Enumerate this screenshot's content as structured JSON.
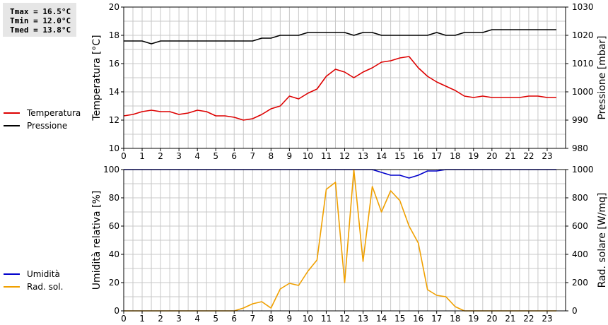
{
  "stats": {
    "tmax": "Tmax = 16.5°C",
    "tmin": "Tmin = 12.0°C",
    "tmed": "Tmed = 13.8°C"
  },
  "colors": {
    "temperature": "#dd0000",
    "pressure": "#000000",
    "humidity": "#0000cc",
    "radiation": "#f0a000",
    "grid": "#c8c8c8"
  },
  "chart_data": [
    {
      "type": "line",
      "xlabel": "",
      "x_ticks": [
        "0",
        "1",
        "2",
        "3",
        "4",
        "5",
        "6",
        "7",
        "8",
        "9",
        "10",
        "11",
        "12",
        "13",
        "14",
        "15",
        "16",
        "17",
        "18",
        "19",
        "20",
        "21",
        "22",
        "23"
      ],
      "xlim": [
        0,
        24
      ],
      "ylabel": "Temperatura [°C]",
      "ylim": [
        10,
        20
      ],
      "y_ticks": [
        "10",
        "12",
        "14",
        "16",
        "18",
        "20"
      ],
      "y2label": "Pressione [mbar]",
      "y2lim": [
        980,
        1030
      ],
      "y2_ticks": [
        "980",
        "990",
        "1000",
        "1010",
        "1020",
        "1030"
      ],
      "grid": true,
      "legend_position": "left",
      "series": [
        {
          "name": "Temperatura",
          "axis": "left",
          "x": [
            0,
            0.5,
            1,
            1.5,
            2,
            2.5,
            3,
            3.5,
            4,
            4.5,
            5,
            5.5,
            6,
            6.5,
            7,
            7.5,
            8,
            8.5,
            9,
            9.5,
            10,
            10.5,
            11,
            11.5,
            12,
            12.5,
            13,
            13.5,
            14,
            14.5,
            15,
            15.5,
            16,
            16.5,
            17,
            17.5,
            18,
            18.5,
            19,
            19.5,
            20,
            20.5,
            21,
            21.5,
            22,
            22.5,
            23,
            23.5
          ],
          "y": [
            12.3,
            12.4,
            12.6,
            12.7,
            12.6,
            12.6,
            12.4,
            12.5,
            12.7,
            12.6,
            12.3,
            12.3,
            12.2,
            12.0,
            12.1,
            12.4,
            12.8,
            13.0,
            13.7,
            13.5,
            13.9,
            14.2,
            15.1,
            15.6,
            15.4,
            15.0,
            15.4,
            15.7,
            16.1,
            16.2,
            16.4,
            16.5,
            15.7,
            15.1,
            14.7,
            14.4,
            14.1,
            13.7,
            13.6,
            13.7,
            13.6,
            13.6,
            13.6,
            13.6,
            13.7,
            13.7,
            13.6,
            13.6
          ]
        },
        {
          "name": "Pressione",
          "axis": "right",
          "x": [
            0,
            0.5,
            1,
            1.5,
            2,
            2.5,
            3,
            3.5,
            4,
            4.5,
            5,
            5.5,
            6,
            6.5,
            7,
            7.5,
            8,
            8.5,
            9,
            9.5,
            10,
            10.5,
            11,
            11.5,
            12,
            12.5,
            13,
            13.5,
            14,
            14.5,
            15,
            15.5,
            16,
            16.5,
            17,
            17.5,
            18,
            18.5,
            19,
            19.5,
            20,
            20.5,
            21,
            21.5,
            22,
            22.5,
            23,
            23.5
          ],
          "y": [
            1018,
            1018,
            1018,
            1017,
            1018,
            1018,
            1018,
            1018,
            1018,
            1018,
            1018,
            1018,
            1018,
            1018,
            1018,
            1019,
            1019,
            1020,
            1020,
            1020,
            1021,
            1021,
            1021,
            1021,
            1021,
            1020,
            1021,
            1021,
            1020,
            1020,
            1020,
            1020,
            1020,
            1020,
            1021,
            1020,
            1020,
            1021,
            1021,
            1021,
            1022,
            1022,
            1022,
            1022,
            1022,
            1022,
            1022,
            1022
          ]
        }
      ]
    },
    {
      "type": "line",
      "xlabel": "",
      "x_ticks": [
        "0",
        "1",
        "2",
        "3",
        "4",
        "5",
        "6",
        "7",
        "8",
        "9",
        "10",
        "11",
        "12",
        "13",
        "14",
        "15",
        "16",
        "17",
        "18",
        "19",
        "20",
        "21",
        "22",
        "23"
      ],
      "xlim": [
        0,
        24
      ],
      "ylabel": "Umidità relativa [%]",
      "ylim": [
        0,
        100
      ],
      "y_ticks": [
        "0",
        "20",
        "40",
        "60",
        "80",
        "100"
      ],
      "y2label": "Rad. solare [W/mq]",
      "y2lim": [
        0,
        1000
      ],
      "y2_ticks": [
        "0",
        "200",
        "400",
        "600",
        "800",
        "1000"
      ],
      "grid": true,
      "legend_position": "left",
      "series": [
        {
          "name": "Umidità",
          "axis": "left",
          "x": [
            0,
            0.5,
            1,
            1.5,
            2,
            2.5,
            3,
            3.5,
            4,
            4.5,
            5,
            5.5,
            6,
            6.5,
            7,
            7.5,
            8,
            8.5,
            9,
            9.5,
            10,
            10.5,
            11,
            11.5,
            12,
            12.5,
            13,
            13.5,
            14,
            14.5,
            15,
            15.5,
            16,
            16.5,
            17,
            17.5,
            18,
            18.5,
            19,
            19.5,
            20,
            20.5,
            21,
            21.5,
            22,
            22.5,
            23,
            23.5
          ],
          "y": [
            100,
            100,
            100,
            100,
            100,
            100,
            100,
            100,
            100,
            100,
            100,
            100,
            100,
            100,
            100,
            100,
            100,
            100,
            100,
            100,
            100,
            100,
            100,
            100,
            100,
            100,
            100,
            100,
            98,
            96,
            96,
            94,
            96,
            99,
            99,
            100,
            100,
            100,
            100,
            100,
            100,
            100,
            100,
            100,
            100,
            100,
            100,
            100
          ]
        },
        {
          "name": "Rad. sol.",
          "axis": "right",
          "x": [
            0,
            0.5,
            1,
            1.5,
            2,
            2.5,
            3,
            3.5,
            4,
            4.5,
            5,
            5.5,
            6,
            6.5,
            7,
            7.5,
            8,
            8.5,
            9,
            9.5,
            10,
            10.5,
            11,
            11.5,
            12,
            12.5,
            13,
            13.5,
            14,
            14.5,
            15,
            15.5,
            16,
            16.5,
            17,
            17.5,
            18,
            18.5,
            19,
            19.5,
            20,
            20.5,
            21,
            21.5,
            22,
            22.5,
            23,
            23.5
          ],
          "y": [
            0,
            0,
            0,
            0,
            0,
            0,
            0,
            0,
            0,
            0,
            0,
            0,
            0,
            20,
            50,
            65,
            20,
            155,
            195,
            180,
            280,
            360,
            860,
            910,
            200,
            1000,
            350,
            880,
            700,
            850,
            780,
            600,
            480,
            150,
            110,
            100,
            30,
            0,
            0,
            0,
            0,
            0,
            0,
            0,
            0,
            0,
            0,
            0
          ]
        }
      ]
    }
  ]
}
